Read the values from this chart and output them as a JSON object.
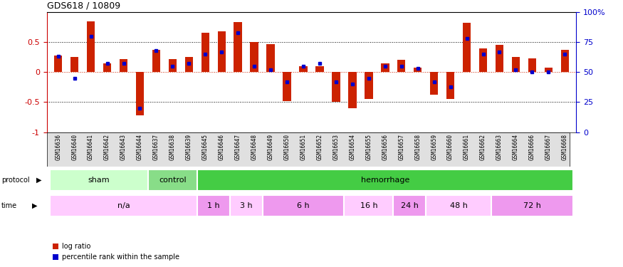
{
  "title": "GDS618 / 10809",
  "samples": [
    "GSM16636",
    "GSM16640",
    "GSM16641",
    "GSM16642",
    "GSM16643",
    "GSM16644",
    "GSM16637",
    "GSM16638",
    "GSM16639",
    "GSM16645",
    "GSM16646",
    "GSM16647",
    "GSM16648",
    "GSM16649",
    "GSM16650",
    "GSM16651",
    "GSM16652",
    "GSM16653",
    "GSM16654",
    "GSM16655",
    "GSM16656",
    "GSM16657",
    "GSM16658",
    "GSM16659",
    "GSM16660",
    "GSM16661",
    "GSM16662",
    "GSM16663",
    "GSM16664",
    "GSM16666",
    "GSM16667",
    "GSM16668"
  ],
  "log_ratio": [
    0.27,
    0.25,
    0.85,
    0.15,
    0.22,
    -0.72,
    0.37,
    0.22,
    0.25,
    0.65,
    0.68,
    0.83,
    0.5,
    0.46,
    -0.48,
    0.1,
    0.1,
    -0.5,
    -0.6,
    -0.45,
    0.15,
    0.2,
    0.08,
    -0.38,
    -0.45,
    0.82,
    0.4,
    0.45,
    0.25,
    0.23,
    0.07,
    0.37
  ],
  "percentile": [
    0.63,
    0.45,
    0.8,
    0.57,
    0.57,
    0.2,
    0.68,
    0.55,
    0.57,
    0.65,
    0.67,
    0.83,
    0.55,
    0.52,
    0.42,
    0.55,
    0.57,
    0.42,
    0.4,
    0.45,
    0.55,
    0.55,
    0.53,
    0.42,
    0.38,
    0.78,
    0.65,
    0.67,
    0.52,
    0.5,
    0.5,
    0.65
  ],
  "protocol_groups": [
    {
      "label": "sham",
      "start": 0,
      "end": 6,
      "color": "#ccffcc"
    },
    {
      "label": "control",
      "start": 6,
      "end": 9,
      "color": "#88dd88"
    },
    {
      "label": "hemorrhage",
      "start": 9,
      "end": 32,
      "color": "#44cc44"
    }
  ],
  "time_groups": [
    {
      "label": "n/a",
      "start": 0,
      "end": 9,
      "color": "#ffccff"
    },
    {
      "label": "1 h",
      "start": 9,
      "end": 11,
      "color": "#ee99ee"
    },
    {
      "label": "3 h",
      "start": 11,
      "end": 13,
      "color": "#ffccff"
    },
    {
      "label": "6 h",
      "start": 13,
      "end": 18,
      "color": "#ee99ee"
    },
    {
      "label": "16 h",
      "start": 18,
      "end": 21,
      "color": "#ffccff"
    },
    {
      "label": "24 h",
      "start": 21,
      "end": 23,
      "color": "#ee99ee"
    },
    {
      "label": "48 h",
      "start": 23,
      "end": 27,
      "color": "#ffccff"
    },
    {
      "label": "72 h",
      "start": 27,
      "end": 32,
      "color": "#ee99ee"
    }
  ],
  "ylim": [
    -1,
    1
  ],
  "bar_color": "#cc2200",
  "dot_color": "#0000cc",
  "bg_color": "#ffffff",
  "axis_color_left": "#cc0000",
  "axis_color_right": "#0000cc"
}
